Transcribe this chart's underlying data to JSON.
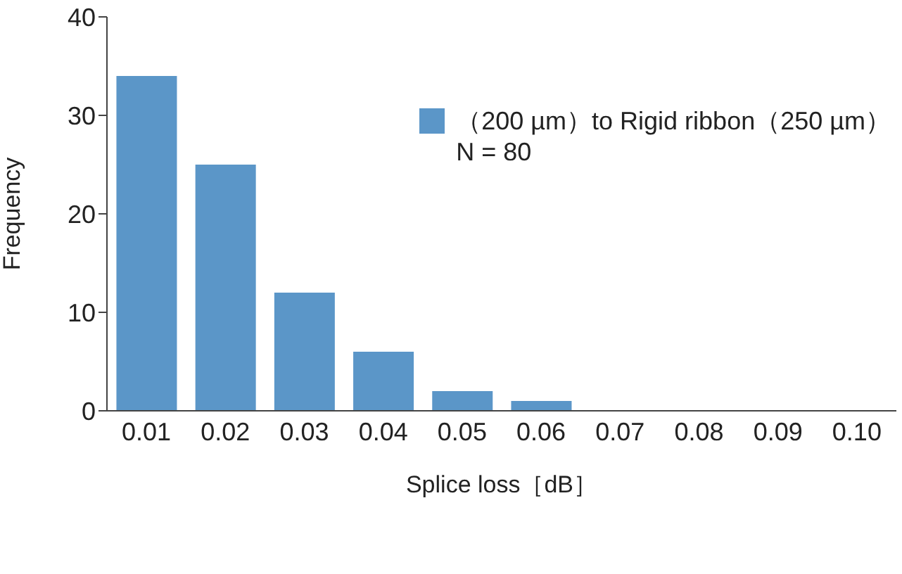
{
  "chart_data": {
    "type": "bar",
    "xlabel": "Splice loss［dB］",
    "ylabel": "Frequency",
    "categories": [
      "0.01",
      "0.02",
      "0.03",
      "0.04",
      "0.05",
      "0.06",
      "0.07",
      "0.08",
      "0.09",
      "0.10"
    ],
    "series": [
      {
        "name": "（200 µm）to Rigid ribbon（250 µm）",
        "color": "#5b96c8",
        "values": [
          34,
          25,
          12,
          6,
          2,
          1,
          0,
          0,
          0,
          0
        ]
      }
    ],
    "ylim": [
      0,
      40
    ],
    "yticks": [
      0,
      10,
      20,
      30,
      40
    ],
    "grid": false,
    "legend": "top right",
    "annotations": [
      "N = 80"
    ]
  }
}
